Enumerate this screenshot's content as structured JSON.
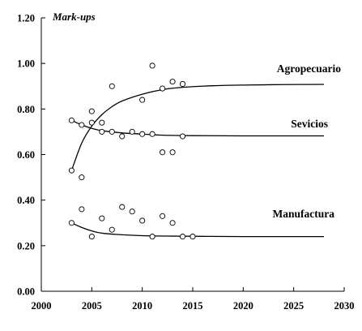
{
  "chart_data": {
    "type": "scatter",
    "title": "",
    "xlabel": "",
    "ylabel": "Mark-ups",
    "xlim": [
      2000,
      2030
    ],
    "ylim": [
      0.0,
      1.2
    ],
    "x_ticks": [
      2000,
      2005,
      2010,
      2015,
      2020,
      2025,
      2030
    ],
    "x_tick_labels": [
      "2000",
      "2005",
      "2010",
      "2015",
      "2020",
      "2025",
      "2030"
    ],
    "y_ticks": [
      0.0,
      0.2,
      0.4,
      0.6,
      0.8,
      1.0,
      1.2
    ],
    "y_tick_labels": [
      "0.00",
      "0.20",
      "0.40",
      "0.60",
      "0.80",
      "1.00",
      "1.20"
    ],
    "grid": false,
    "legend": "none",
    "series": [
      {
        "name": "Agropecuario",
        "points": [
          {
            "x": 2003,
            "y": 0.53
          },
          {
            "x": 2004,
            "y": 0.5
          },
          {
            "x": 2005,
            "y": 0.79
          },
          {
            "x": 2007,
            "y": 0.9
          },
          {
            "x": 2010,
            "y": 0.84
          },
          {
            "x": 2011,
            "y": 0.99
          },
          {
            "x": 2012,
            "y": 0.89
          },
          {
            "x": 2013,
            "y": 0.92
          },
          {
            "x": 2014,
            "y": 0.91
          }
        ],
        "fit": [
          {
            "x": 2003,
            "y": 0.53
          },
          {
            "x": 2004,
            "y": 0.65
          },
          {
            "x": 2005,
            "y": 0.725
          },
          {
            "x": 2006,
            "y": 0.775
          },
          {
            "x": 2007,
            "y": 0.81
          },
          {
            "x": 2008,
            "y": 0.835
          },
          {
            "x": 2010,
            "y": 0.865
          },
          {
            "x": 2012,
            "y": 0.885
          },
          {
            "x": 2014,
            "y": 0.895
          },
          {
            "x": 2017,
            "y": 0.902
          },
          {
            "x": 2020,
            "y": 0.905
          },
          {
            "x": 2024,
            "y": 0.907
          },
          {
            "x": 2028,
            "y": 0.908
          }
        ]
      },
      {
        "name": "Sevicios",
        "points": [
          {
            "x": 2003,
            "y": 0.75
          },
          {
            "x": 2004,
            "y": 0.73
          },
          {
            "x": 2005,
            "y": 0.74
          },
          {
            "x": 2006,
            "y": 0.74
          },
          {
            "x": 2006,
            "y": 0.7
          },
          {
            "x": 2007,
            "y": 0.7
          },
          {
            "x": 2008,
            "y": 0.68
          },
          {
            "x": 2009,
            "y": 0.7
          },
          {
            "x": 2010,
            "y": 0.69
          },
          {
            "x": 2011,
            "y": 0.69
          },
          {
            "x": 2012,
            "y": 0.61
          },
          {
            "x": 2013,
            "y": 0.61
          },
          {
            "x": 2014,
            "y": 0.68
          }
        ],
        "fit": [
          {
            "x": 2003,
            "y": 0.75
          },
          {
            "x": 2004,
            "y": 0.73
          },
          {
            "x": 2005,
            "y": 0.715
          },
          {
            "x": 2006,
            "y": 0.705
          },
          {
            "x": 2008,
            "y": 0.695
          },
          {
            "x": 2010,
            "y": 0.69
          },
          {
            "x": 2012,
            "y": 0.685
          },
          {
            "x": 2015,
            "y": 0.683
          },
          {
            "x": 2020,
            "y": 0.682
          },
          {
            "x": 2028,
            "y": 0.682
          }
        ]
      },
      {
        "name": "Manufactura",
        "points": [
          {
            "x": 2003,
            "y": 0.3
          },
          {
            "x": 2004,
            "y": 0.36
          },
          {
            "x": 2005,
            "y": 0.24
          },
          {
            "x": 2006,
            "y": 0.32
          },
          {
            "x": 2007,
            "y": 0.27
          },
          {
            "x": 2008,
            "y": 0.37
          },
          {
            "x": 2009,
            "y": 0.35
          },
          {
            "x": 2010,
            "y": 0.31
          },
          {
            "x": 2011,
            "y": 0.24
          },
          {
            "x": 2012,
            "y": 0.33
          },
          {
            "x": 2013,
            "y": 0.3
          },
          {
            "x": 2014,
            "y": 0.24
          },
          {
            "x": 2015,
            "y": 0.24
          }
        ],
        "fit": [
          {
            "x": 2003,
            "y": 0.3
          },
          {
            "x": 2004,
            "y": 0.28
          },
          {
            "x": 2005,
            "y": 0.265
          },
          {
            "x": 2006,
            "y": 0.255
          },
          {
            "x": 2008,
            "y": 0.248
          },
          {
            "x": 2010,
            "y": 0.244
          },
          {
            "x": 2013,
            "y": 0.242
          },
          {
            "x": 2016,
            "y": 0.241
          },
          {
            "x": 2020,
            "y": 0.24
          },
          {
            "x": 2028,
            "y": 0.24
          }
        ]
      }
    ]
  }
}
